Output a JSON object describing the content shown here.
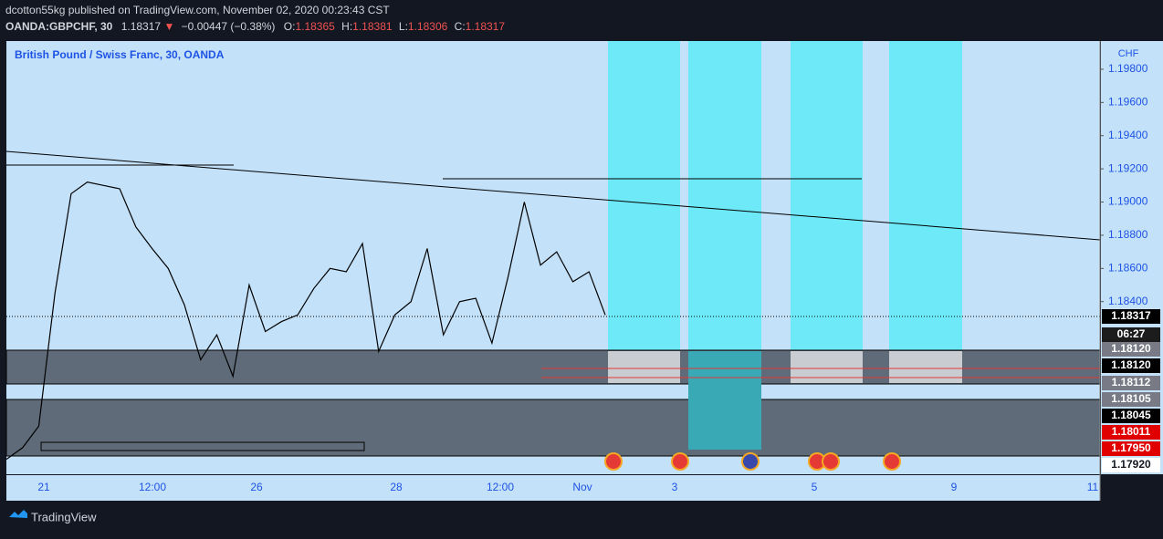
{
  "header": {
    "publisher": "dcotton55kg published on TradingView.com, November 02, 2020 00:23:43 CST",
    "symbol": "OANDA:GBPCHF, 30",
    "last": "1.18317",
    "arrow": "▼",
    "change": "−0.00447 (−0.38%)",
    "o_label": "O:",
    "o": "1.18365",
    "h_label": "H:",
    "h": "1.18381",
    "l_label": "L:",
    "l": "1.18306",
    "c_label": "C:",
    "c": "1.18317"
  },
  "chart_data": {
    "type": "line",
    "title": "British Pound / Swiss Franc, 30, OANDA",
    "axis_currency": "CHF",
    "values": [
      1.1745,
      1.1752,
      1.1765,
      1.1845,
      1.1905,
      1.1912,
      1.191,
      1.1908,
      1.1885,
      1.1872,
      1.186,
      1.1838,
      1.1805,
      1.182,
      1.1795,
      1.185,
      1.1822,
      1.1828,
      1.1832,
      1.1848,
      1.186,
      1.1858,
      1.1875,
      1.181,
      1.1832,
      1.184,
      1.1872,
      1.182,
      1.184,
      1.1842,
      1.1815,
      1.1855,
      1.19,
      1.1862,
      1.187,
      1.1852,
      1.1858,
      1.1832
    ],
    "color": "#000000",
    "ylim": [
      1.1736,
      1.1997
    ],
    "yticks": [
      {
        "value": 1.184,
        "label": "1.18400"
      },
      {
        "value": 1.186,
        "label": "1.18600"
      },
      {
        "value": 1.188,
        "label": "1.18800"
      },
      {
        "value": 1.19,
        "label": "1.19000"
      },
      {
        "value": 1.192,
        "label": "1.19200"
      },
      {
        "value": 1.194,
        "label": "1.19400"
      },
      {
        "value": 1.196,
        "label": "1.19600"
      },
      {
        "value": 1.198,
        "label": "1.19800"
      }
    ],
    "x_axis_labels": [
      "21",
      "12:00",
      "26",
      "28",
      "12:00",
      "Nov",
      "3",
      "5",
      "9",
      "11"
    ],
    "price_badges": [
      "1.18317",
      "06:27",
      "1.18120",
      "1.18120",
      "1.18112",
      "1.18105",
      "1.18045",
      "1.18011",
      "1.17950",
      "1.17920"
    ],
    "grid": false
  },
  "footer": {
    "brand": "TradingView"
  }
}
